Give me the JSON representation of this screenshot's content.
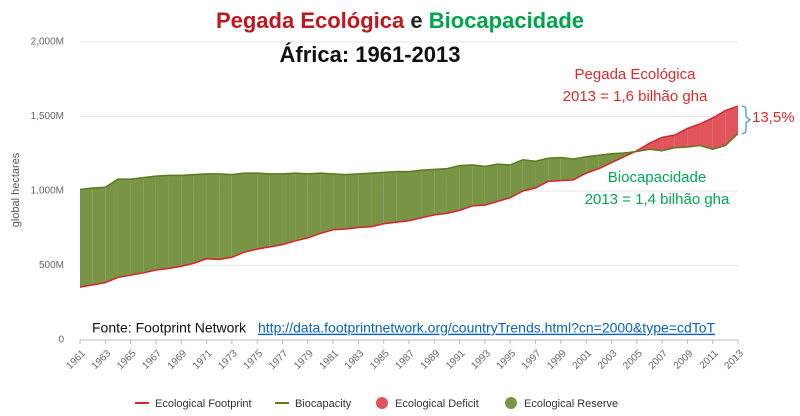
{
  "chart_data": {
    "type": "area-gap",
    "title_parts": [
      "Pegada Ecológica",
      "e",
      "Biocapacidade"
    ],
    "title_colors": [
      "#c0161e",
      "#222222",
      "#00a44a"
    ],
    "subtitle": "África: 1961-2013",
    "y_label": "global hectares",
    "x": [
      1961,
      1962,
      1963,
      1964,
      1965,
      1966,
      1967,
      1968,
      1969,
      1970,
      1971,
      1972,
      1973,
      1974,
      1975,
      1976,
      1977,
      1978,
      1979,
      1980,
      1981,
      1982,
      1983,
      1984,
      1985,
      1986,
      1987,
      1988,
      1989,
      1990,
      1991,
      1992,
      1993,
      1994,
      1995,
      1996,
      1997,
      1998,
      1999,
      2000,
      2001,
      2002,
      2003,
      2004,
      2005,
      2006,
      2007,
      2008,
      2009,
      2010,
      2011,
      2012,
      2013
    ],
    "xlim": [
      1961,
      2013
    ],
    "xticks": [
      1961,
      1963,
      1965,
      1967,
      1969,
      1971,
      1973,
      1975,
      1977,
      1979,
      1981,
      1983,
      1985,
      1987,
      1989,
      1991,
      1993,
      1995,
      1997,
      1999,
      2001,
      2003,
      2005,
      2007,
      2009,
      2011,
      2013
    ],
    "ylim": [
      0,
      2000
    ],
    "yticks": [
      0,
      {
        "value": 500,
        "label": "500M"
      },
      {
        "value": 1000,
        "label": "1,000M"
      },
      {
        "value": 1500,
        "label": "1,500M"
      },
      {
        "value": 2000,
        "label": "2,000M"
      }
    ],
    "grid": true,
    "series": [
      {
        "name": "Ecological Footprint",
        "color": "#d9232e",
        "values": [
          355,
          370,
          385,
          420,
          435,
          450,
          470,
          480,
          495,
          515,
          545,
          540,
          555,
          590,
          610,
          625,
          640,
          665,
          685,
          715,
          740,
          745,
          755,
          760,
          780,
          790,
          800,
          820,
          840,
          850,
          870,
          900,
          905,
          930,
          955,
          1000,
          1020,
          1065,
          1070,
          1075,
          1120,
          1150,
          1190,
          1230,
          1270,
          1320,
          1360,
          1375,
          1420,
          1450,
          1490,
          1540,
          1570
        ]
      },
      {
        "name": "Biocapacity",
        "color": "#5c7a1f",
        "values": [
          1010,
          1020,
          1025,
          1080,
          1080,
          1090,
          1100,
          1105,
          1105,
          1110,
          1115,
          1115,
          1110,
          1120,
          1120,
          1115,
          1115,
          1120,
          1115,
          1120,
          1115,
          1110,
          1115,
          1120,
          1125,
          1130,
          1130,
          1140,
          1145,
          1150,
          1170,
          1175,
          1165,
          1180,
          1175,
          1210,
          1200,
          1220,
          1225,
          1215,
          1230,
          1240,
          1250,
          1255,
          1265,
          1280,
          1270,
          1290,
          1295,
          1305,
          1280,
          1305,
          1385
        ]
      }
    ],
    "fills": [
      {
        "name": "Ecological Deficit",
        "color": "#e0555c"
      },
      {
        "name": "Ecological Reserve",
        "color": "#7a9446"
      }
    ],
    "annotations": [
      {
        "text": "Pegada Ecológica",
        "color": "#e02a2a"
      },
      {
        "text": "2013 = 1,6 bilhão gha",
        "color": "#e02a2a"
      },
      {
        "text": "13,5%",
        "color": "#e02a2a"
      },
      {
        "text": "Biocapacidade",
        "color": "#00a84f"
      },
      {
        "text": "2013 = 1,4 bilhão gha",
        "color": "#00a84f"
      }
    ],
    "source": "Fonte: Footprint Network",
    "source_url": "http://data.footprintnetwork.org/countryTrends.html?cn=2000&type=cdToT"
  }
}
